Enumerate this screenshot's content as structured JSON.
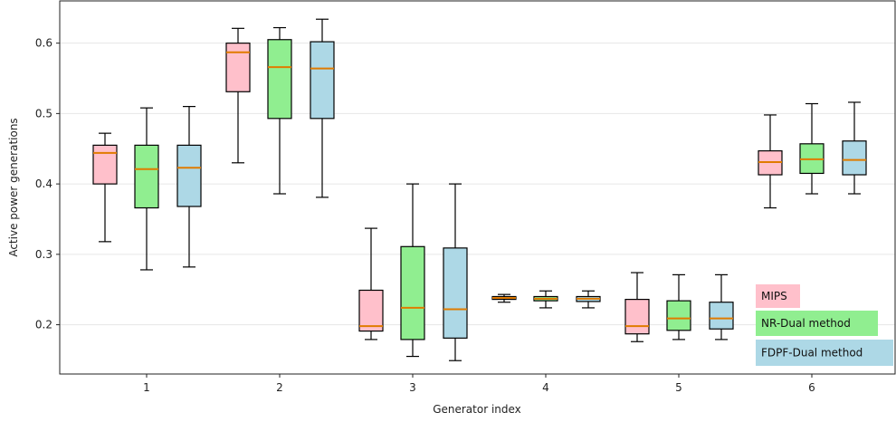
{
  "chart_data": {
    "type": "box",
    "xlabel": "Generator index",
    "ylabel": "Active power generations",
    "categories": [
      "1",
      "2",
      "3",
      "4",
      "5",
      "6"
    ],
    "yticks": [
      0.2,
      0.3,
      0.4,
      0.5,
      0.6
    ],
    "ylim": [
      0.13,
      0.66
    ],
    "grid": "horizontal",
    "legend_position": "bottom-right",
    "series": [
      {
        "name": "MIPS",
        "color": "#ffc0cb",
        "boxes": [
          {
            "min": 0.318,
            "q1": 0.4,
            "median": 0.444,
            "q3": 0.455,
            "max": 0.472
          },
          {
            "min": 0.43,
            "q1": 0.531,
            "median": 0.587,
            "q3": 0.6,
            "max": 0.621
          },
          {
            "min": 0.179,
            "q1": 0.191,
            "median": 0.198,
            "q3": 0.249,
            "max": 0.337
          },
          {
            "min": 0.232,
            "q1": 0.236,
            "median": 0.238,
            "q3": 0.24,
            "max": 0.243
          },
          {
            "min": 0.176,
            "q1": 0.187,
            "median": 0.198,
            "q3": 0.236,
            "max": 0.274
          },
          {
            "min": 0.366,
            "q1": 0.413,
            "median": 0.431,
            "q3": 0.447,
            "max": 0.498
          }
        ]
      },
      {
        "name": "NR-Dual method",
        "color": "#90ee90",
        "boxes": [
          {
            "min": 0.278,
            "q1": 0.366,
            "median": 0.421,
            "q3": 0.455,
            "max": 0.508
          },
          {
            "min": 0.386,
            "q1": 0.493,
            "median": 0.566,
            "q3": 0.605,
            "max": 0.622
          },
          {
            "min": 0.155,
            "q1": 0.179,
            "median": 0.224,
            "q3": 0.311,
            "max": 0.4
          },
          {
            "min": 0.224,
            "q1": 0.234,
            "median": 0.237,
            "q3": 0.24,
            "max": 0.248
          },
          {
            "min": 0.179,
            "q1": 0.192,
            "median": 0.209,
            "q3": 0.234,
            "max": 0.271
          },
          {
            "min": 0.386,
            "q1": 0.415,
            "median": 0.435,
            "q3": 0.457,
            "max": 0.514
          }
        ]
      },
      {
        "name": "FDPF-Dual method",
        "color": "#add8e6",
        "boxes": [
          {
            "min": 0.282,
            "q1": 0.368,
            "median": 0.423,
            "q3": 0.455,
            "max": 0.51
          },
          {
            "min": 0.381,
            "q1": 0.493,
            "median": 0.564,
            "q3": 0.602,
            "max": 0.634
          },
          {
            "min": 0.149,
            "q1": 0.181,
            "median": 0.222,
            "q3": 0.309,
            "max": 0.4
          },
          {
            "min": 0.224,
            "q1": 0.233,
            "median": 0.237,
            "q3": 0.24,
            "max": 0.248
          },
          {
            "min": 0.179,
            "q1": 0.194,
            "median": 0.209,
            "q3": 0.232,
            "max": 0.271
          },
          {
            "min": 0.386,
            "q1": 0.413,
            "median": 0.434,
            "q3": 0.461,
            "max": 0.516
          }
        ]
      }
    ]
  }
}
